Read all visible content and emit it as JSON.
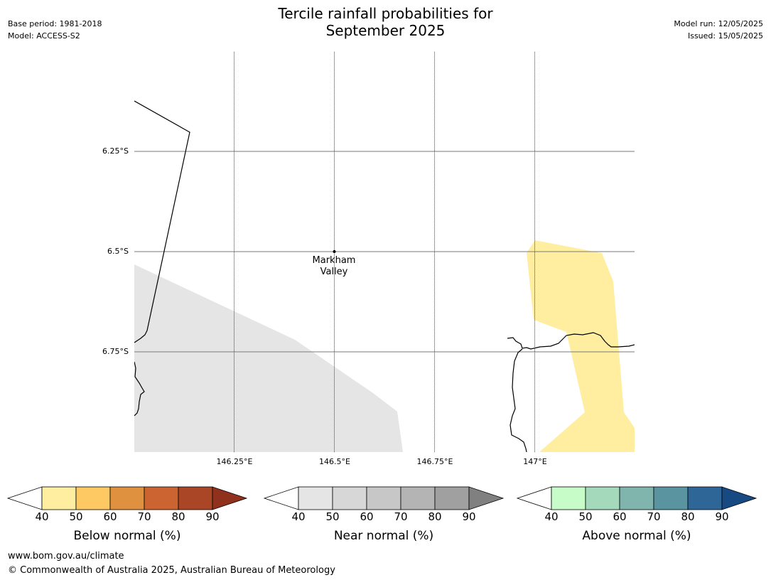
{
  "header": {
    "title_line1": "Tercile rainfall probabilities for",
    "title_line2": "September 2025",
    "base_period": "Base period: 1981-2018",
    "model": "Model: ACCESS-S2",
    "model_run": "Model run: 12/05/2025",
    "issued": "Issued: 15/05/2025"
  },
  "map": {
    "latitude_labels": [
      "6.25°S",
      "6.5°S",
      "6.75°S"
    ],
    "longitude_labels": [
      "146.25°E",
      "146.5°E",
      "146.75°E",
      "147°E"
    ],
    "place_label_line1": "Markham",
    "place_label_line2": "Valley",
    "colors": {
      "near_normal_region": "#e5e5e5",
      "below_normal_region": "#ffeda0",
      "coastline": "#000000"
    }
  },
  "colorbars": [
    {
      "title": "Below normal (%)",
      "ticks": [
        "40",
        "50",
        "60",
        "70",
        "80",
        "90"
      ],
      "colors": [
        "#ffeda0",
        "#fec962",
        "#e0913f",
        "#cc6432",
        "#aa4526",
        "#90311e"
      ]
    },
    {
      "title": "Near normal (%)",
      "ticks": [
        "40",
        "50",
        "60",
        "70",
        "80",
        "90"
      ],
      "colors": [
        "#e5e5e5",
        "#d7d7d7",
        "#c7c7c7",
        "#b4b4b4",
        "#a0a0a0",
        "#808080"
      ]
    },
    {
      "title": "Above normal (%)",
      "ticks": [
        "40",
        "50",
        "60",
        "70",
        "80",
        "90"
      ],
      "colors": [
        "#c7fbc7",
        "#a4dabb",
        "#80b5ae",
        "#5a94a0",
        "#2f6698",
        "#174a82"
      ]
    }
  ],
  "footer": {
    "url": "www.bom.gov.au/climate",
    "copyright": "© Commonwealth of Australia 2025, Australian Bureau of Meteorology"
  }
}
